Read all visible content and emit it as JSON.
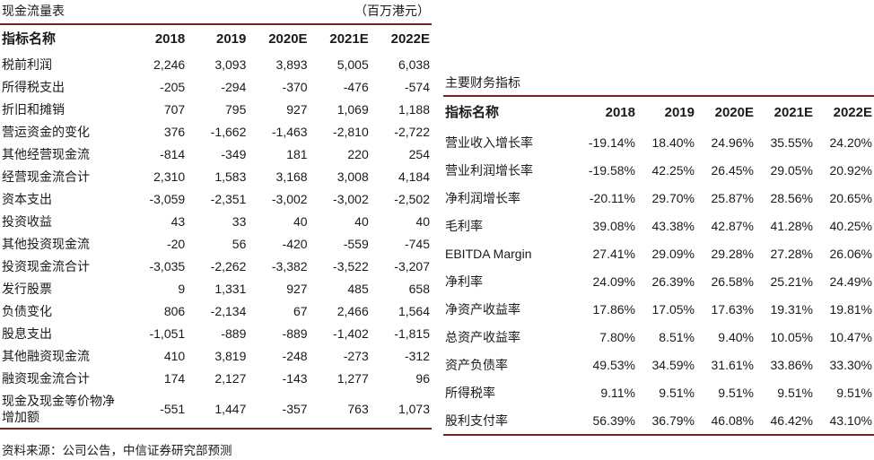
{
  "colors": {
    "rule": "#8C1D1D"
  },
  "page": {
    "source_note": "资料来源：公司公告，中信证券研究部预测"
  },
  "left_table": {
    "title": "现金流量表",
    "unit": "（百万港元）",
    "headers": [
      "指标名称",
      "2018",
      "2019",
      "2020E",
      "2021E",
      "2022E"
    ],
    "rows": [
      {
        "label": "税前利润",
        "values": [
          "2,246",
          "3,093",
          "3,893",
          "5,005",
          "6,038"
        ]
      },
      {
        "label": "所得税支出",
        "values": [
          "-205",
          "-294",
          "-370",
          "-476",
          "-574"
        ]
      },
      {
        "label": "折旧和摊销",
        "values": [
          "707",
          "795",
          "927",
          "1,069",
          "1,188"
        ]
      },
      {
        "label": "营运资金的变化",
        "values": [
          "376",
          "-1,662",
          "-1,463",
          "-2,810",
          "-2,722"
        ]
      },
      {
        "label": "其他经营现金流",
        "values": [
          "-814",
          "-349",
          "181",
          "220",
          "254"
        ]
      },
      {
        "label": "经营现金流合计",
        "values": [
          "2,310",
          "1,583",
          "3,168",
          "3,008",
          "4,184"
        ]
      },
      {
        "label": "资本支出",
        "values": [
          "-3,059",
          "-2,351",
          "-3,002",
          "-3,002",
          "-2,502"
        ]
      },
      {
        "label": "投资收益",
        "values": [
          "43",
          "33",
          "40",
          "40",
          "40"
        ]
      },
      {
        "label": "其他投资现金流",
        "values": [
          "-20",
          "56",
          "-420",
          "-559",
          "-745"
        ]
      },
      {
        "label": "投资现金流合计",
        "values": [
          "-3,035",
          "-2,262",
          "-3,382",
          "-3,522",
          "-3,207"
        ]
      },
      {
        "label": "发行股票",
        "values": [
          "9",
          "1,331",
          "927",
          "485",
          "658"
        ]
      },
      {
        "label": "负债变化",
        "values": [
          "806",
          "-2,134",
          "67",
          "2,466",
          "1,564"
        ]
      },
      {
        "label": "股息支出",
        "values": [
          "-1,051",
          "-889",
          "-889",
          "-1,402",
          "-1,815"
        ]
      },
      {
        "label": "其他融资现金流",
        "values": [
          "410",
          "3,819",
          "-248",
          "-273",
          "-312"
        ]
      },
      {
        "label": "融资现金流合计",
        "values": [
          "174",
          "2,127",
          "-143",
          "1,277",
          "96"
        ]
      },
      {
        "label": "现金及现金等价物净增加额",
        "values": [
          "-551",
          "1,447",
          "-357",
          "763",
          "1,073"
        ]
      }
    ]
  },
  "right_table": {
    "title": "主要财务指标",
    "headers": [
      "指标名称",
      "2018",
      "2019",
      "2020E",
      "2021E",
      "2022E"
    ],
    "rows": [
      {
        "label": "营业收入增长率",
        "values": [
          "-19.14%",
          "18.40%",
          "24.96%",
          "35.55%",
          "24.20%"
        ]
      },
      {
        "label": "营业利润增长率",
        "values": [
          "-19.58%",
          "42.25%",
          "26.45%",
          "29.05%",
          "20.92%"
        ]
      },
      {
        "label": "净利润增长率",
        "values": [
          "-20.11%",
          "29.70%",
          "25.87%",
          "28.56%",
          "20.65%"
        ]
      },
      {
        "label": "毛利率",
        "values": [
          "39.08%",
          "43.38%",
          "42.87%",
          "41.28%",
          "40.25%"
        ]
      },
      {
        "label": "EBITDA Margin",
        "values": [
          "27.41%",
          "29.09%",
          "29.28%",
          "27.28%",
          "26.06%"
        ]
      },
      {
        "label": "净利率",
        "values": [
          "24.09%",
          "26.39%",
          "26.58%",
          "25.21%",
          "24.49%"
        ]
      },
      {
        "label": "净资产收益率",
        "values": [
          "17.86%",
          "17.05%",
          "17.63%",
          "19.31%",
          "19.81%"
        ]
      },
      {
        "label": "总资产收益率",
        "values": [
          "7.80%",
          "8.51%",
          "9.40%",
          "10.05%",
          "10.47%"
        ]
      },
      {
        "label": "资产负债率",
        "values": [
          "49.53%",
          "34.59%",
          "31.61%",
          "33.86%",
          "33.30%"
        ]
      },
      {
        "label": "所得税率",
        "values": [
          "9.11%",
          "9.51%",
          "9.51%",
          "9.51%",
          "9.51%"
        ]
      },
      {
        "label": "股利支付率",
        "values": [
          "56.39%",
          "36.79%",
          "46.08%",
          "46.42%",
          "43.10%"
        ]
      }
    ]
  }
}
